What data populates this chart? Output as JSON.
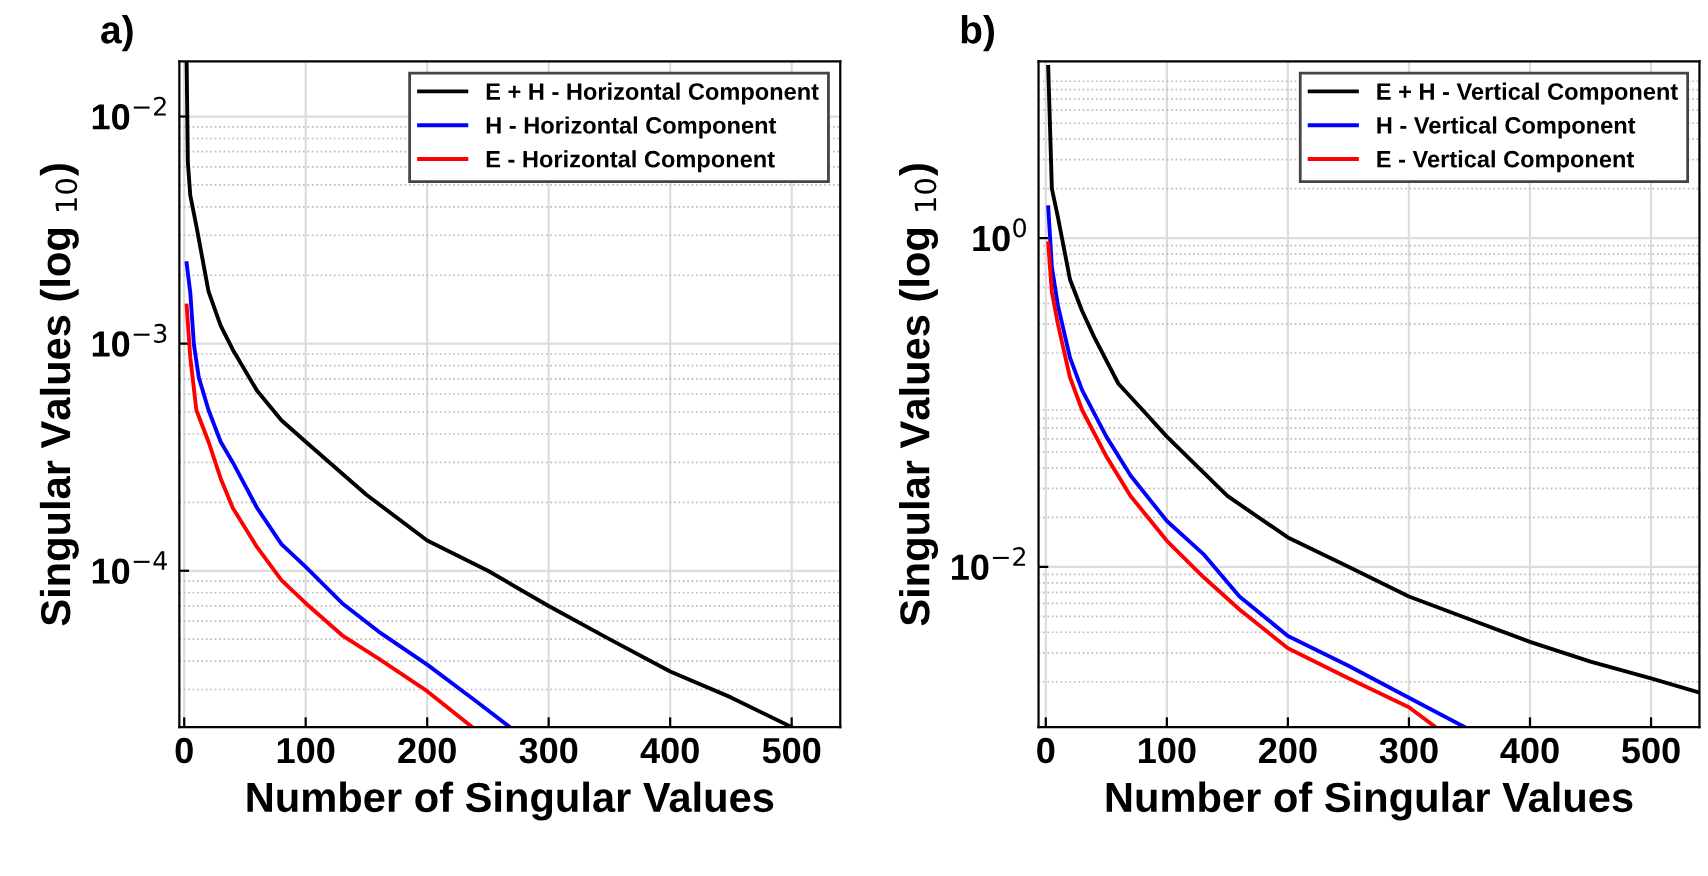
{
  "chart_data": [
    {
      "type": "line",
      "title": "a)",
      "xlabel": "Number of Singular Values",
      "ylabel": "Singular Values (log $_{10}$)",
      "log": "y",
      "grid": true,
      "legend": "top right",
      "xlim": [
        -4,
        540
      ],
      "xticks": [
        0,
        100,
        200,
        300,
        400,
        500
      ],
      "ylim": [
        2.05e-05,
        0.0175
      ],
      "yticks": [
        {
          "value": 0.0001,
          "label": "10$^{−4}$"
        },
        {
          "value": 0.001,
          "label": "10$^{−3}$"
        },
        {
          "value": 0.01,
          "label": "10$^{−2}$"
        }
      ],
      "series": [
        {
          "name": "E + H - Horizontal Component",
          "color": "#000000",
          "x": [
            2,
            3,
            5,
            10,
            20,
            30,
            40,
            60,
            80,
            100,
            150,
            200,
            250,
            300,
            350,
            400,
            450,
            500
          ],
          "values": [
            0.0175,
            0.0063,
            0.0045,
            0.0033,
            0.0017,
            0.0012,
            0.00094,
            0.00062,
            0.00046,
            0.00037,
            0.000216,
            0.000136,
            0.0001,
            7e-05,
            5e-05,
            3.6e-05,
            2.77e-05,
            2.05e-05
          ]
        },
        {
          "name": "H - Horizontal Component",
          "color": "#0000ff",
          "x": [
            2,
            5,
            8,
            12,
            20,
            30,
            40,
            60,
            80,
            100,
            130,
            160,
            200,
            240,
            268
          ],
          "values": [
            0.00226,
            0.00168,
            0.00099,
            0.00071,
            0.00051,
            0.00037,
            0.0003,
            0.000189,
            0.000131,
            0.000104,
            7.2e-05,
            5.4e-05,
            3.86e-05,
            2.67e-05,
            2.05e-05
          ]
        },
        {
          "name": "E - Horizontal Component",
          "color": "#ff0000",
          "x": [
            2,
            5,
            10,
            20,
            30,
            40,
            60,
            80,
            100,
            130,
            160,
            200,
            237
          ],
          "values": [
            0.00147,
            0.00087,
            0.00051,
            0.00037,
            0.000255,
            0.000189,
            0.000127,
            9.1e-05,
            7.2e-05,
            5.2e-05,
            4.1e-05,
            2.95e-05,
            2.05e-05
          ]
        }
      ]
    },
    {
      "type": "line",
      "title": "b)",
      "xlabel": "Number of Singular Values",
      "ylabel": "Singular Values (log $_{10}$)",
      "log": "y",
      "grid": true,
      "legend": "top right",
      "xlim": [
        -6,
        540
      ],
      "xticks": [
        0,
        100,
        200,
        300,
        400,
        500
      ],
      "ylim": [
        0.00106,
        11.9
      ],
      "yticks": [
        {
          "value": 0.01,
          "label": "10$^{−2}$"
        },
        {
          "value": 1,
          "label": "10$^{0}$"
        }
      ],
      "series": [
        {
          "name": "E + H - Vertical Component",
          "color": "#000000",
          "x": [
            2,
            5,
            10,
            20,
            30,
            40,
            60,
            80,
            100,
            150,
            200,
            250,
            300,
            350,
            400,
            450,
            500,
            540
          ],
          "values": [
            11,
            2.0,
            1.34,
            0.56,
            0.36,
            0.25,
            0.13,
            0.09,
            0.062,
            0.027,
            0.0151,
            0.01,
            0.0066,
            0.0048,
            0.0035,
            0.00265,
            0.0021,
            0.00172
          ]
        },
        {
          "name": "H - Vertical Component",
          "color": "#0000ff",
          "x": [
            2,
            5,
            10,
            20,
            30,
            50,
            70,
            100,
            130,
            160,
            200,
            250,
            300,
            346
          ],
          "values": [
            1.54,
            0.67,
            0.39,
            0.187,
            0.119,
            0.062,
            0.036,
            0.019,
            0.012,
            0.0066,
            0.0038,
            0.0025,
            0.0016,
            0.00106
          ]
        },
        {
          "name": "E - Vertical Component",
          "color": "#ff0000",
          "x": [
            2,
            5,
            10,
            20,
            30,
            50,
            70,
            100,
            130,
            160,
            200,
            250,
            300,
            322
          ],
          "values": [
            0.93,
            0.47,
            0.3,
            0.142,
            0.09,
            0.047,
            0.027,
            0.0144,
            0.0087,
            0.0055,
            0.0032,
            0.0021,
            0.0014,
            0.00106
          ]
        }
      ]
    }
  ]
}
